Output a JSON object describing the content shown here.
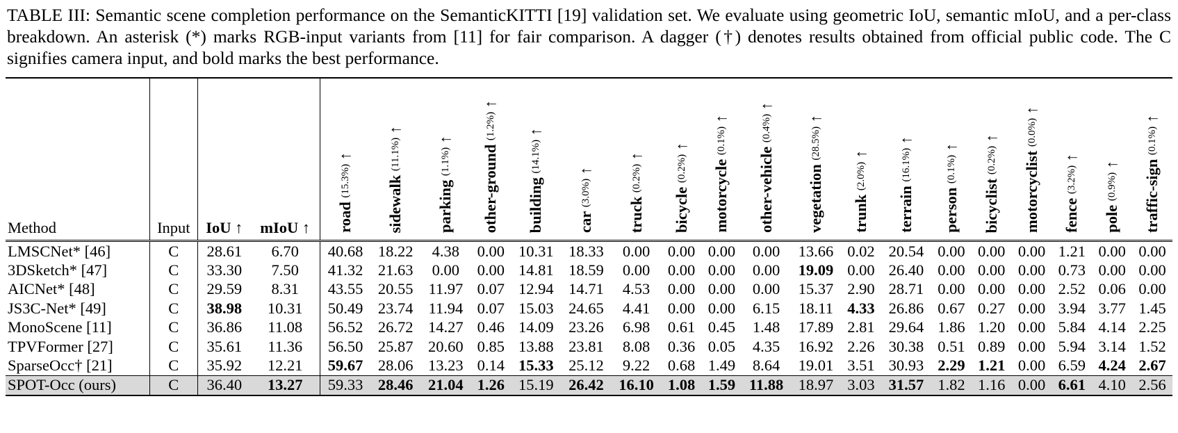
{
  "caption": {
    "label": "TABLE III:",
    "text": "Semantic scene completion performance on the SemanticKITTI [19] validation set. We evaluate using geometric IoU, semantic mIoU, and a per-class breakdown. An asterisk (*) marks RGB-input variants from [11] for fair comparison. A dagger (†) denotes results obtained from official public code. The C signifies camera input, and bold marks the best performance."
  },
  "table": {
    "header": {
      "method": "Method",
      "input": "Input",
      "iou": "IoU ↑",
      "miou": "mIoU ↑",
      "classes": [
        {
          "name": "road",
          "freq": "(15.3%)",
          "arrow": "↑"
        },
        {
          "name": "sidewalk",
          "freq": "(11.1%)",
          "arrow": "↑"
        },
        {
          "name": "parking",
          "freq": "(1.1%)",
          "arrow": "↑"
        },
        {
          "name": "other-ground",
          "freq": "(1.2%)",
          "arrow": "↑"
        },
        {
          "name": "building",
          "freq": "(14.1%)",
          "arrow": "↑"
        },
        {
          "name": "car",
          "freq": "(3.0%)",
          "arrow": "↑"
        },
        {
          "name": "truck",
          "freq": "(0.2%)",
          "arrow": "↑"
        },
        {
          "name": "bicycle",
          "freq": "(0.2%)",
          "arrow": "↑"
        },
        {
          "name": "motorcycle",
          "freq": "(0.1%)",
          "arrow": "↑"
        },
        {
          "name": "other-vehicle",
          "freq": "(0.4%)",
          "arrow": "↑"
        },
        {
          "name": "vegetation",
          "freq": "(28.5%)",
          "arrow": "↑"
        },
        {
          "name": "trunk",
          "freq": "(2.0%)",
          "arrow": "↑"
        },
        {
          "name": "terrain",
          "freq": "(16.1%)",
          "arrow": "↑"
        },
        {
          "name": "person",
          "freq": "(0.1%)",
          "arrow": "↑"
        },
        {
          "name": "bicyclist",
          "freq": "(0.2%)",
          "arrow": "↑"
        },
        {
          "name": "motorcyclist",
          "freq": "(0.0%)",
          "arrow": "↑"
        },
        {
          "name": "fence",
          "freq": "(3.2%)",
          "arrow": "↑"
        },
        {
          "name": "pole",
          "freq": "(0.9%)",
          "arrow": "↑"
        },
        {
          "name": "traffic-sign",
          "freq": "(0.1%)",
          "arrow": "↑"
        }
      ]
    },
    "rows": [
      {
        "method": "LMSCNet* [46]",
        "input": "C",
        "values": [
          "28.61",
          "6.70",
          "40.68",
          "18.22",
          "4.38",
          "0.00",
          "10.31",
          "18.33",
          "0.00",
          "0.00",
          "0.00",
          "0.00",
          "13.66",
          "0.02",
          "20.54",
          "0.00",
          "0.00",
          "0.00",
          "1.21",
          "0.00",
          "0.00"
        ],
        "bold": []
      },
      {
        "method": "3DSketch* [47]",
        "input": "C",
        "values": [
          "33.30",
          "7.50",
          "41.32",
          "21.63",
          "0.00",
          "0.00",
          "14.81",
          "18.59",
          "0.00",
          "0.00",
          "0.00",
          "0.00",
          "19.09",
          "0.00",
          "26.40",
          "0.00",
          "0.00",
          "0.00",
          "0.73",
          "0.00",
          "0.00"
        ],
        "bold": [
          12
        ]
      },
      {
        "method": "AICNet* [48]",
        "input": "C",
        "values": [
          "29.59",
          "8.31",
          "43.55",
          "20.55",
          "11.97",
          "0.07",
          "12.94",
          "14.71",
          "4.53",
          "0.00",
          "0.00",
          "0.00",
          "15.37",
          "2.90",
          "28.71",
          "0.00",
          "0.00",
          "0.00",
          "2.52",
          "0.06",
          "0.00"
        ],
        "bold": []
      },
      {
        "method": "JS3C-Net* [49]",
        "input": "C",
        "values": [
          "38.98",
          "10.31",
          "50.49",
          "23.74",
          "11.94",
          "0.07",
          "15.03",
          "24.65",
          "4.41",
          "0.00",
          "0.00",
          "6.15",
          "18.11",
          "4.33",
          "26.86",
          "0.67",
          "0.27",
          "0.00",
          "3.94",
          "3.77",
          "1.45"
        ],
        "bold": [
          0,
          13
        ]
      },
      {
        "method": "MonoScene [11]",
        "input": "C",
        "values": [
          "36.86",
          "11.08",
          "56.52",
          "26.72",
          "14.27",
          "0.46",
          "14.09",
          "23.26",
          "6.98",
          "0.61",
          "0.45",
          "1.48",
          "17.89",
          "2.81",
          "29.64",
          "1.86",
          "1.20",
          "0.00",
          "5.84",
          "4.14",
          "2.25"
        ],
        "bold": []
      },
      {
        "method": "TPVFormer [27]",
        "input": "C",
        "values": [
          "35.61",
          "11.36",
          "56.50",
          "25.87",
          "20.60",
          "0.85",
          "13.88",
          "23.81",
          "8.08",
          "0.36",
          "0.05",
          "4.35",
          "16.92",
          "2.26",
          "30.38",
          "0.51",
          "0.89",
          "0.00",
          "5.94",
          "3.14",
          "1.52"
        ],
        "bold": []
      },
      {
        "method": "SparseOcc† [21]",
        "input": "C",
        "values": [
          "35.92",
          "12.21",
          "59.67",
          "28.06",
          "13.23",
          "0.14",
          "15.33",
          "25.12",
          "9.22",
          "0.68",
          "1.49",
          "8.64",
          "19.01",
          "3.51",
          "30.93",
          "2.29",
          "1.21",
          "0.00",
          "6.59",
          "4.24",
          "2.67"
        ],
        "bold": [
          2,
          6,
          15,
          16,
          19,
          20
        ]
      },
      {
        "method": "SPOT-Occ (ours)",
        "input": "C",
        "values": [
          "36.40",
          "13.27",
          "59.33",
          "28.46",
          "21.04",
          "1.26",
          "15.19",
          "26.42",
          "16.10",
          "1.08",
          "1.59",
          "11.88",
          "18.97",
          "3.03",
          "31.57",
          "1.82",
          "1.16",
          "0.00",
          "6.61",
          "4.10",
          "2.56"
        ],
        "bold": [
          1,
          3,
          4,
          5,
          7,
          8,
          9,
          10,
          11,
          14,
          18
        ],
        "highlight": true
      }
    ]
  }
}
